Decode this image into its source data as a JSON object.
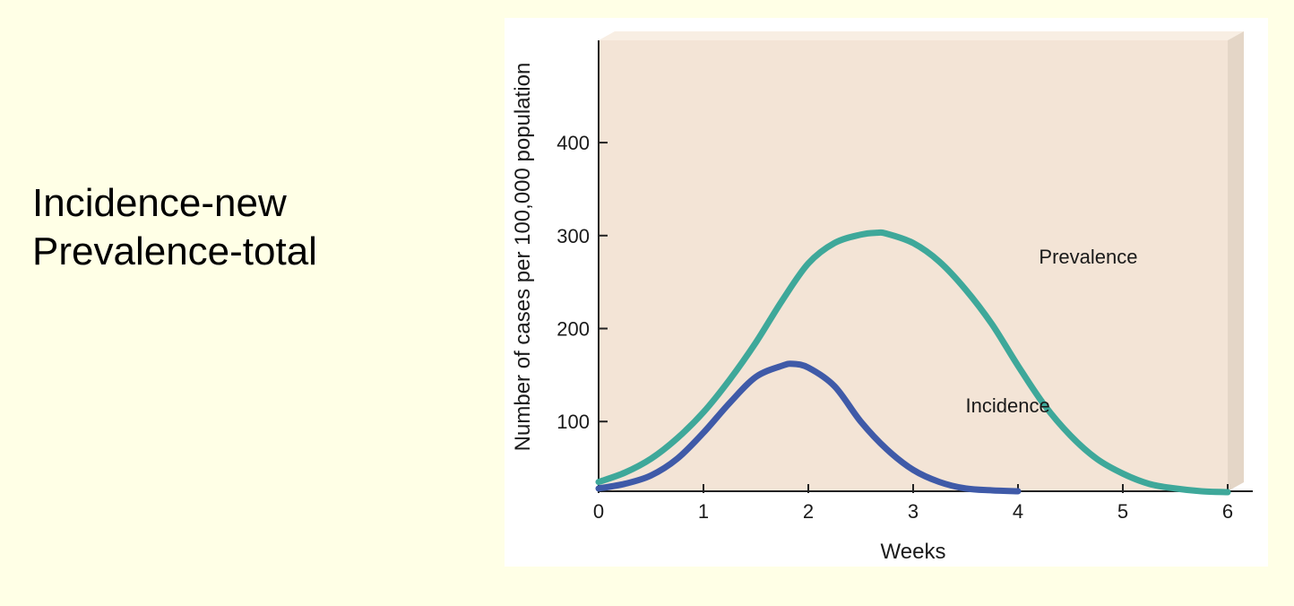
{
  "slide": {
    "lines": [
      "Incidence-new",
      "Prevalence-total"
    ]
  },
  "colors": {
    "page_background": "#ffffe6",
    "plot_background": "#f3e4d6",
    "plot_side": "#e4d6c7",
    "plot_top": "#f8eee3",
    "incidence": "#3f5aa8",
    "prevalence": "#3ea89a",
    "axis": "#222222"
  },
  "chart_data": {
    "type": "line",
    "title": "",
    "xlabel": "Weeks",
    "ylabel": "Number of cases per 100,000 population",
    "xlim": [
      0,
      6
    ],
    "ylim": [
      25,
      510
    ],
    "x_ticks": [
      0,
      1,
      2,
      3,
      4,
      5,
      6
    ],
    "y_ticks": [
      100,
      200,
      300,
      400
    ],
    "grid": false,
    "series": [
      {
        "name": "Prevalence",
        "x": [
          0,
          0.25,
          0.5,
          0.75,
          1,
          1.25,
          1.5,
          1.75,
          2,
          2.25,
          2.5,
          2.65,
          2.75,
          3,
          3.25,
          3.5,
          3.75,
          4,
          4.25,
          4.5,
          4.75,
          5,
          5.25,
          5.5,
          5.75,
          6
        ],
        "values": [
          35,
          45,
          60,
          82,
          110,
          145,
          185,
          230,
          270,
          292,
          301,
          303,
          302,
          292,
          272,
          242,
          205,
          160,
          118,
          85,
          60,
          44,
          33,
          28,
          25,
          24
        ]
      },
      {
        "name": "Incidence",
        "x": [
          0,
          0.25,
          0.5,
          0.75,
          1,
          1.25,
          1.5,
          1.75,
          1.85,
          2,
          2.25,
          2.5,
          2.75,
          3,
          3.25,
          3.5,
          3.75,
          4
        ],
        "values": [
          28,
          33,
          42,
          60,
          88,
          120,
          148,
          160,
          162,
          158,
          138,
          100,
          70,
          48,
          35,
          28,
          26,
          25
        ]
      }
    ],
    "annotations": [
      {
        "text": "Prevalence",
        "x": 4.2,
        "y": 270
      },
      {
        "text": "Incidence",
        "x": 3.5,
        "y": 110
      }
    ]
  }
}
